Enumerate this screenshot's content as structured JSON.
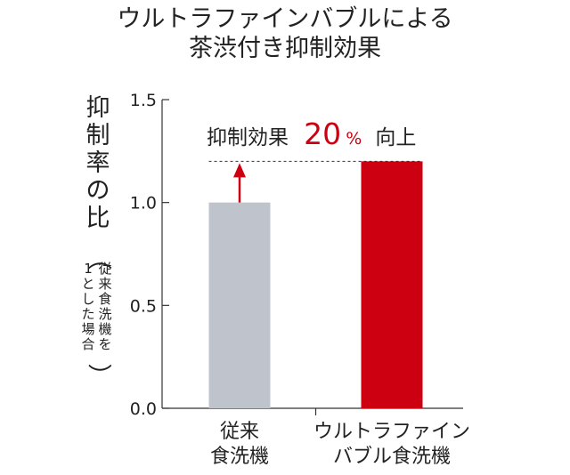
{
  "chart_data": {
    "type": "bar",
    "title_lines": [
      "ウルトラファインバブルによる",
      "茶渋付き抑制効果"
    ],
    "categories": [
      [
        "従来",
        "食洗機"
      ],
      [
        "ウルトラファイン",
        "バブル食洗機"
      ]
    ],
    "values": [
      1.0,
      1.2
    ],
    "ylim": [
      0,
      1.5
    ],
    "yticks": [
      "0.0",
      "0.5",
      "1.0",
      "1.5"
    ],
    "ylabel_main": [
      "抑",
      "制",
      "率",
      "の",
      "比"
    ],
    "ylabel_paren_open": "（",
    "ylabel_sub_col1": [
      "従",
      "来",
      "食",
      "洗",
      "機",
      "を"
    ],
    "ylabel_sub_col2": [
      "1",
      "と",
      "し",
      "た",
      "場",
      "合"
    ],
    "ylabel_paren_close": "）",
    "annotation": {
      "prefix": "抑制効果",
      "number": "20",
      "unit": "%",
      "suffix": "向上"
    },
    "colors": {
      "conventional": "#bfc4cc",
      "ultrafine": "#cc0011",
      "arrow": "#cc0011",
      "axis": "#333333"
    },
    "grid": false,
    "legend": "none"
  }
}
